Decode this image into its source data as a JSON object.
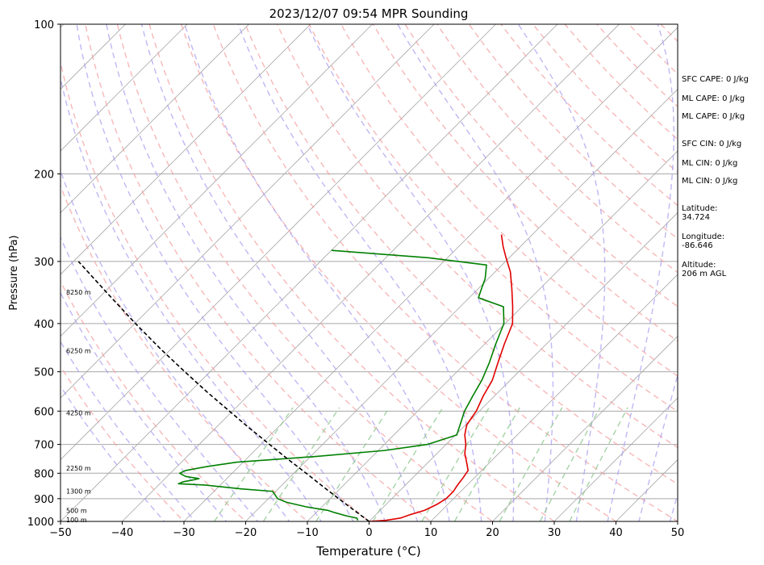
{
  "chart_data": {
    "type": "line",
    "title": "2023/12/07 09:54 MPR Sounding",
    "xlabel": "Temperature (°C)",
    "ylabel": "Pressure (hPa)",
    "xlim": [
      -50,
      50
    ],
    "ylim_pressure_hpa": [
      1000,
      100
    ],
    "y_scale": "log",
    "x_skewed": true,
    "grid": true,
    "x_ticks": [
      -50,
      -40,
      -30,
      -20,
      -10,
      0,
      10,
      20,
      30,
      40,
      50
    ],
    "x_tick_labels": [
      "−50",
      "−40",
      "−30",
      "−20",
      "−10",
      "0",
      "10",
      "20",
      "30",
      "40",
      "50"
    ],
    "y_ticks": [
      100,
      200,
      300,
      400,
      500,
      600,
      700,
      800,
      900,
      1000
    ],
    "y_tick_labels": [
      "100",
      "200",
      "300",
      "400",
      "500",
      "600",
      "700",
      "800",
      "900",
      "1000"
    ],
    "colors": {
      "temperature": "#e00000",
      "dewpoint": "#008000",
      "parcel": "#000000",
      "isotherm": "#a8a8a8",
      "dry_adiabat": "#f4a0a0",
      "moist_adiabat": "#a9a0f0",
      "mixing_ratio": "#90c890"
    },
    "series": [
      {
        "id": "temperature",
        "points": [
          [
            1000,
            0
          ],
          [
            995,
            2.5
          ],
          [
            985,
            4.5
          ],
          [
            970,
            5.5
          ],
          [
            950,
            7.2
          ],
          [
            925,
            8.2
          ],
          [
            900,
            8.8
          ],
          [
            870,
            8.8
          ],
          [
            850,
            8.5
          ],
          [
            820,
            8.2
          ],
          [
            790,
            7.8
          ],
          [
            760,
            6.2
          ],
          [
            730,
            4.5
          ],
          [
            700,
            3.2
          ],
          [
            670,
            1.5
          ],
          [
            640,
            0.2
          ],
          [
            600,
            -0.5
          ],
          [
            560,
            -1.8
          ],
          [
            520,
            -2.9
          ],
          [
            480,
            -4.8
          ],
          [
            440,
            -6.8
          ],
          [
            400,
            -8.8
          ],
          [
            370,
            -11.5
          ],
          [
            340,
            -14.6
          ],
          [
            315,
            -17.5
          ],
          [
            295,
            -20.5
          ],
          [
            280,
            -22.8
          ],
          [
            265,
            -25.0
          ]
        ]
      },
      {
        "id": "dewpoint",
        "points": [
          [
            995,
            -2.0
          ],
          [
            985,
            -2.5
          ],
          [
            975,
            -4.5
          ],
          [
            960,
            -7.0
          ],
          [
            950,
            -8.5
          ],
          [
            935,
            -12.5
          ],
          [
            915,
            -16.5
          ],
          [
            900,
            -18.5
          ],
          [
            870,
            -20.5
          ],
          [
            860,
            -26.0
          ],
          [
            845,
            -32.5
          ],
          [
            840,
            -37.0
          ],
          [
            832,
            -36.5
          ],
          [
            825,
            -35.2
          ],
          [
            820,
            -34.5
          ],
          [
            812,
            -37.0
          ],
          [
            800,
            -38.5
          ],
          [
            790,
            -38.0
          ],
          [
            775,
            -35.0
          ],
          [
            760,
            -31.0
          ],
          [
            740,
            -19.0
          ],
          [
            720,
            -9.0
          ],
          [
            700,
            -3.0
          ],
          [
            670,
            0.2
          ],
          [
            600,
            -2.4
          ],
          [
            560,
            -3.5
          ],
          [
            520,
            -4.6
          ],
          [
            480,
            -6.2
          ],
          [
            440,
            -8.2
          ],
          [
            400,
            -10.2
          ],
          [
            370,
            -13.0
          ],
          [
            355,
            -18.5
          ],
          [
            340,
            -19.5
          ],
          [
            325,
            -20.5
          ],
          [
            305,
            -22.5
          ],
          [
            295,
            -33.0
          ],
          [
            285,
            -50.0
          ]
        ]
      },
      {
        "id": "parcel",
        "points": [
          [
            1000,
            0
          ],
          [
            950,
            -4.2
          ],
          [
            900,
            -8.6
          ],
          [
            850,
            -13.2
          ],
          [
            800,
            -18.0
          ],
          [
            750,
            -23.2
          ],
          [
            700,
            -28.6
          ],
          [
            650,
            -34.4
          ],
          [
            600,
            -40.5
          ],
          [
            550,
            -47.1
          ],
          [
            500,
            -54.1
          ],
          [
            450,
            -61.7
          ],
          [
            400,
            -69.9
          ],
          [
            350,
            -78.9
          ],
          [
            300,
            -89.2
          ]
        ]
      }
    ],
    "height_labels": [
      "100 m",
      "500 m",
      "1300 m",
      "2250 m",
      "4250 m",
      "6250 m",
      "8250 m"
    ],
    "height_label_pressures": [
      997,
      955,
      872,
      785,
      607,
      455,
      347
    ]
  },
  "indices": {
    "sfc_cape": "SFC CAPE: 0 J/kg",
    "ml_cape_1": "ML CAPE: 0 J/kg",
    "ml_cape_2": "ML CAPE: 0 J/kg",
    "sfc_cin": "SFC CIN: 0 J/kg",
    "ml_cin_1": "ML CIN: 0 J/kg",
    "ml_cin_2": "ML CIN: 0 J/kg",
    "latitude": "Latitude:\n34.724",
    "longitude": "Longitude:\n-86.646",
    "altitude": "Altitude:\n206 m AGL"
  }
}
